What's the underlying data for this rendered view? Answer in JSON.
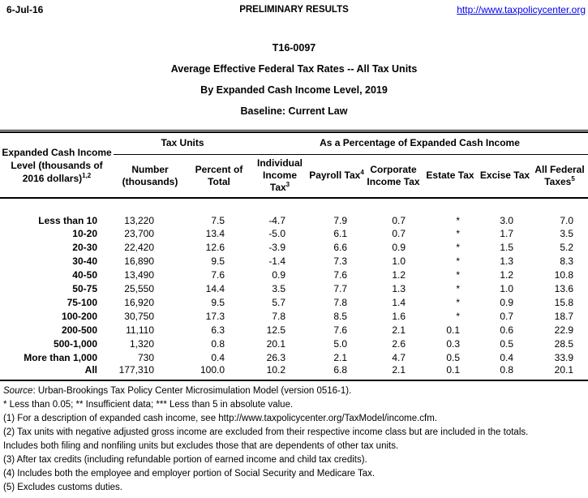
{
  "page": {
    "date": "6-Jul-16",
    "status": "PRELIMINARY RESULTS",
    "link": "http://www.taxpolicycenter.org",
    "link_color": "#0000ee"
  },
  "titles": {
    "id": "T16-0097",
    "line1": "Average Effective Federal Tax Rates -- All Tax Units",
    "line2": "By Expanded Cash Income Level, 2019",
    "line3": "Baseline: Current Law"
  },
  "table": {
    "row_header": {
      "line1": "Expanded Cash Income",
      "line2": "Level (thousands of",
      "line3": "2016 dollars)",
      "sup": "1,2"
    },
    "group_headers": {
      "tax_units": "Tax Units",
      "as_percentage": "As a Percentage of Expanded Cash Income"
    },
    "columns": {
      "number": {
        "line1": "Number",
        "line2": "(thousands)"
      },
      "percent": {
        "line1": "Percent of",
        "line2": "Total"
      },
      "iit": {
        "line1": "Individual",
        "line2": "Income",
        "line3": "Tax",
        "sup": "3"
      },
      "payroll": {
        "label": "Payroll Tax",
        "sup": "4"
      },
      "corporate": {
        "line1": "Corporate",
        "line2": "Income Tax"
      },
      "estate": {
        "label": "Estate Tax"
      },
      "excise": {
        "label": "Excise Tax"
      },
      "allfed": {
        "line1": "All Federal",
        "line2": "Taxes",
        "sup": "5"
      }
    },
    "rows": [
      {
        "label": "Less than 10",
        "v": [
          "13,220",
          "7.5",
          "-4.7",
          "7.9",
          "0.7",
          "*",
          "3.0",
          "7.0"
        ]
      },
      {
        "label": "10-20",
        "v": [
          "23,700",
          "13.4",
          "-5.0",
          "6.1",
          "0.7",
          "*",
          "1.7",
          "3.5"
        ]
      },
      {
        "label": "20-30",
        "v": [
          "22,420",
          "12.6",
          "-3.9",
          "6.6",
          "0.9",
          "*",
          "1.5",
          "5.2"
        ]
      },
      {
        "label": "30-40",
        "v": [
          "16,890",
          "9.5",
          "-1.4",
          "7.3",
          "1.0",
          "*",
          "1.3",
          "8.3"
        ]
      },
      {
        "label": "40-50",
        "v": [
          "13,490",
          "7.6",
          "0.9",
          "7.6",
          "1.2",
          "*",
          "1.2",
          "10.8"
        ]
      },
      {
        "label": "50-75",
        "v": [
          "25,550",
          "14.4",
          "3.5",
          "7.7",
          "1.3",
          "*",
          "1.0",
          "13.6"
        ]
      },
      {
        "label": "75-100",
        "v": [
          "16,920",
          "9.5",
          "5.7",
          "7.8",
          "1.4",
          "*",
          "0.9",
          "15.8"
        ]
      },
      {
        "label": "100-200",
        "v": [
          "30,750",
          "17.3",
          "7.8",
          "8.5",
          "1.6",
          "*",
          "0.7",
          "18.7"
        ]
      },
      {
        "label": "200-500",
        "v": [
          "11,110",
          "6.3",
          "12.5",
          "7.6",
          "2.1",
          "0.1",
          "0.6",
          "22.9"
        ]
      },
      {
        "label": "500-1,000",
        "v": [
          "1,320",
          "0.8",
          "20.1",
          "5.0",
          "2.6",
          "0.3",
          "0.5",
          "28.5"
        ]
      },
      {
        "label": "More than 1,000",
        "v": [
          "730",
          "0.4",
          "26.3",
          "2.1",
          "4.7",
          "0.5",
          "0.4",
          "33.9"
        ]
      },
      {
        "label": "All",
        "v": [
          "177,310",
          "100.0",
          "10.2",
          "6.8",
          "2.1",
          "0.1",
          "0.8",
          "20.1"
        ]
      }
    ]
  },
  "footnotes": {
    "source_label": "Source",
    "source_text": ": Urban-Brookings Tax Policy Center Microsimulation Model (version 0516-1).",
    "lines": [
      "* Less than 0.05; ** Insufficient data; *** Less than 5 in absolute value.",
      "(1) For a description of expanded cash income, see http://www.taxpolicycenter.org/TaxModel/income.cfm.",
      "(2) Tax units with negative adjusted gross income are excluded from their respective income class but are included in the totals.",
      "Includes both filing and nonfiling units but excludes those that are dependents of other tax units.",
      "(3) After tax credits (including refundable portion of earned income and child tax credits).",
      "(4) Includes both the employee and employer portion of Social Security and Medicare Tax.",
      "(5) Excludes customs duties."
    ]
  }
}
